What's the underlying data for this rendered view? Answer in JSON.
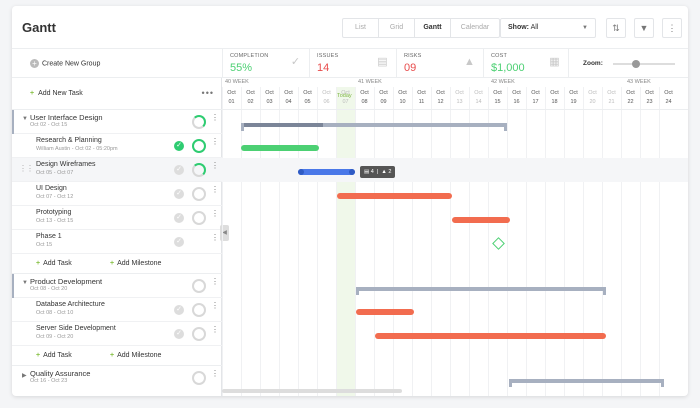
{
  "header": {
    "title": "Gantt",
    "views": [
      "List",
      "Grid",
      "Gantt",
      "Calendar"
    ],
    "active_view": "Gantt",
    "show_label": "Show:",
    "show_value": "All"
  },
  "toolbar": {
    "create_group": "Create New Group",
    "add_task": "Add New Task",
    "zoom_label": "Zoom:",
    "zoom_level": 0.3,
    "stats": [
      {
        "label": "COMPLETION",
        "value": "55%",
        "color": "#4cd073",
        "icon": "check-circle-icon"
      },
      {
        "label": "ISSUES",
        "value": "14",
        "color": "#e84c4c",
        "icon": "document-icon"
      },
      {
        "label": "RISKS",
        "value": "09",
        "color": "#e84c4c",
        "icon": "warning-icon"
      },
      {
        "label": "COST",
        "value": "$1,000",
        "color": "#4cd073",
        "icon": "receipt-icon"
      }
    ]
  },
  "rows": {
    "g1": {
      "name": "User Interface Design",
      "sub": "Oct 02 - Oct 15"
    },
    "t1": {
      "name": "Research & Planning",
      "sub": "William Austin - Oct 02 - 05:20pm"
    },
    "t2": {
      "name": "Design Wireframes",
      "sub": "Oct 05 - Oct 07"
    },
    "t3": {
      "name": "UI Design",
      "sub": "Oct 07 - Oct 12"
    },
    "t4": {
      "name": "Prototyping",
      "sub": "Oct 13 - Oct 15"
    },
    "t5": {
      "name": "Phase 1",
      "sub": "Oct 15"
    },
    "g2": {
      "name": "Product Development",
      "sub": "Oct 08 - Oct 20"
    },
    "t6": {
      "name": "Database Architecture",
      "sub": "Oct 08 - Oct 10"
    },
    "t7": {
      "name": "Server Side Development",
      "sub": "Oct 09 - Oct 20"
    },
    "g3": {
      "name": "Quality Assurance",
      "sub": "Oct 16 - Oct 23"
    }
  },
  "add_task": "Add Task",
  "add_milestone": "Add Milestone",
  "timeline": {
    "weeks": [
      "40 WEEK",
      "41 WEEK",
      "42 WEEK",
      "43 WEEK"
    ],
    "month": "Oct",
    "days": [
      "01",
      "02",
      "03",
      "04",
      "05",
      "06",
      "07",
      "08",
      "09",
      "10",
      "11",
      "12",
      "13",
      "14",
      "15",
      "16",
      "17",
      "18",
      "19",
      "20",
      "21",
      "22",
      "23",
      "24"
    ],
    "today_label": "Today",
    "tooltip": {
      "count_a": "4",
      "count_b": "2"
    }
  }
}
